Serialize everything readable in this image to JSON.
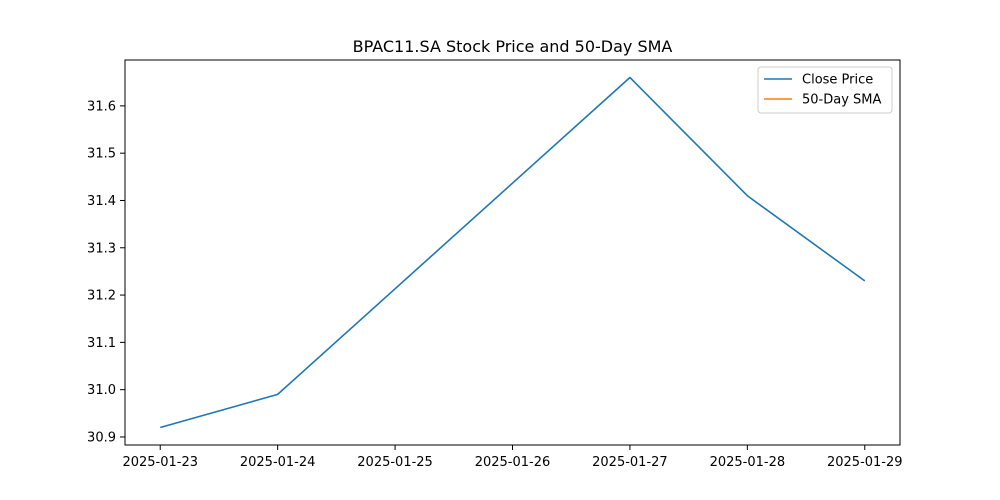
{
  "chart_data": {
    "type": "line",
    "title": "BPAC11.SA Stock Price and 50-Day SMA",
    "xlabel": "",
    "ylabel": "",
    "x": [
      "2025-01-23",
      "2025-01-24",
      "2025-01-25",
      "2025-01-26",
      "2025-01-27",
      "2025-01-28",
      "2025-01-29"
    ],
    "xticks": [
      "2025-01-23",
      "2025-01-24",
      "2025-01-25",
      "2025-01-26",
      "2025-01-27",
      "2025-01-28",
      "2025-01-29"
    ],
    "yticks": [
      "30.9",
      "31.0",
      "31.1",
      "31.2",
      "31.3",
      "31.4",
      "31.5",
      "31.6"
    ],
    "ylim": [
      30.883,
      31.697
    ],
    "grid": false,
    "legend_position": "top-right",
    "series": [
      {
        "name": "Close Price",
        "color": "#1f77b4",
        "points": [
          {
            "x": "2025-01-23",
            "y": 30.92
          },
          {
            "x": "2025-01-24",
            "y": 30.99
          },
          {
            "x": "2025-01-27",
            "y": 31.66
          },
          {
            "x": "2025-01-28",
            "y": 31.41
          },
          {
            "x": "2025-01-29",
            "y": 31.23
          }
        ]
      },
      {
        "name": "50-Day SMA",
        "color": "#ff7f0e",
        "points": []
      }
    ]
  }
}
